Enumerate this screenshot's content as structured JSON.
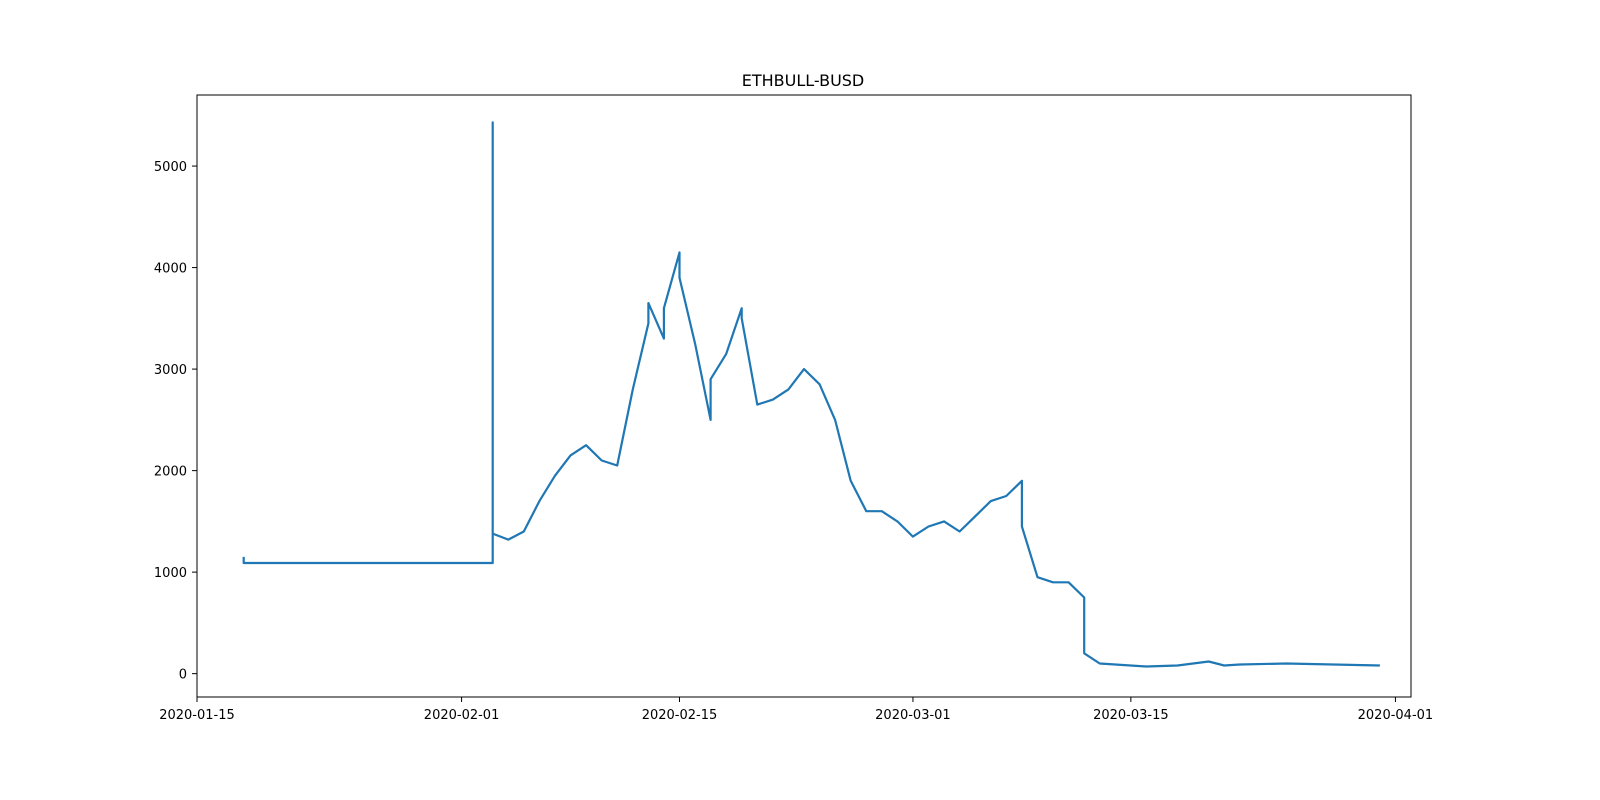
{
  "chart_data": {
    "type": "line",
    "title": "ETHBULL-BUSD",
    "xlabel": "",
    "ylabel": "",
    "x_axis_type": "date",
    "xlim": [
      "2020-01-15",
      "2020-04-02"
    ],
    "ylim": [
      -230,
      5700
    ],
    "grid": false,
    "legend": "none",
    "x_ticks": [
      "2020-01-15",
      "2020-02-01",
      "2020-02-15",
      "2020-03-01",
      "2020-03-15",
      "2020-04-01"
    ],
    "y_ticks": [
      0,
      1000,
      2000,
      3000,
      4000,
      5000
    ],
    "colors": {
      "line": "#1f77b4",
      "axes": "#000000",
      "background": "#ffffff"
    },
    "series": [
      {
        "x": [
          "2020-01-18",
          "2020-01-18",
          "2020-01-18",
          "2020-01-20",
          "2020-01-25",
          "2020-01-30",
          "2020-02-03",
          "2020-02-03",
          "2020-02-03",
          "2020-02-03",
          "2020-02-04",
          "2020-02-05",
          "2020-02-06",
          "2020-02-07",
          "2020-02-08",
          "2020-02-09",
          "2020-02-10",
          "2020-02-11",
          "2020-02-12",
          "2020-02-13",
          "2020-02-13",
          "2020-02-14",
          "2020-02-14",
          "2020-02-15",
          "2020-02-15",
          "2020-02-16",
          "2020-02-17",
          "2020-02-17",
          "2020-02-18",
          "2020-02-19",
          "2020-02-19",
          "2020-02-20",
          "2020-02-21",
          "2020-02-22",
          "2020-02-23",
          "2020-02-24",
          "2020-02-25",
          "2020-02-26",
          "2020-02-27",
          "2020-02-28",
          "2020-02-29",
          "2020-03-01",
          "2020-03-02",
          "2020-03-03",
          "2020-03-04",
          "2020-03-05",
          "2020-03-06",
          "2020-03-07",
          "2020-03-08",
          "2020-03-08",
          "2020-03-09",
          "2020-03-10",
          "2020-03-11",
          "2020-03-12",
          "2020-03-12",
          "2020-03-13",
          "2020-03-14",
          "2020-03-16",
          "2020-03-18",
          "2020-03-20",
          "2020-03-21",
          "2020-03-22",
          "2020-03-25",
          "2020-03-28",
          "2020-03-31"
        ],
        "y": [
          1150,
          1090,
          1090,
          1090,
          1090,
          1090,
          1090,
          5430,
          1370,
          1380,
          1320,
          1400,
          1700,
          1950,
          2150,
          2250,
          2100,
          2050,
          2800,
          3450,
          3650,
          3300,
          3600,
          4150,
          3900,
          3250,
          2500,
          2900,
          3150,
          3600,
          3500,
          2650,
          2700,
          2800,
          3000,
          2850,
          2500,
          1900,
          1600,
          1600,
          1500,
          1350,
          1450,
          1500,
          1400,
          1550,
          1700,
          1750,
          1900,
          1450,
          950,
          900,
          900,
          750,
          200,
          100,
          90,
          70,
          80,
          120,
          80,
          90,
          100,
          90,
          80
        ]
      }
    ]
  }
}
